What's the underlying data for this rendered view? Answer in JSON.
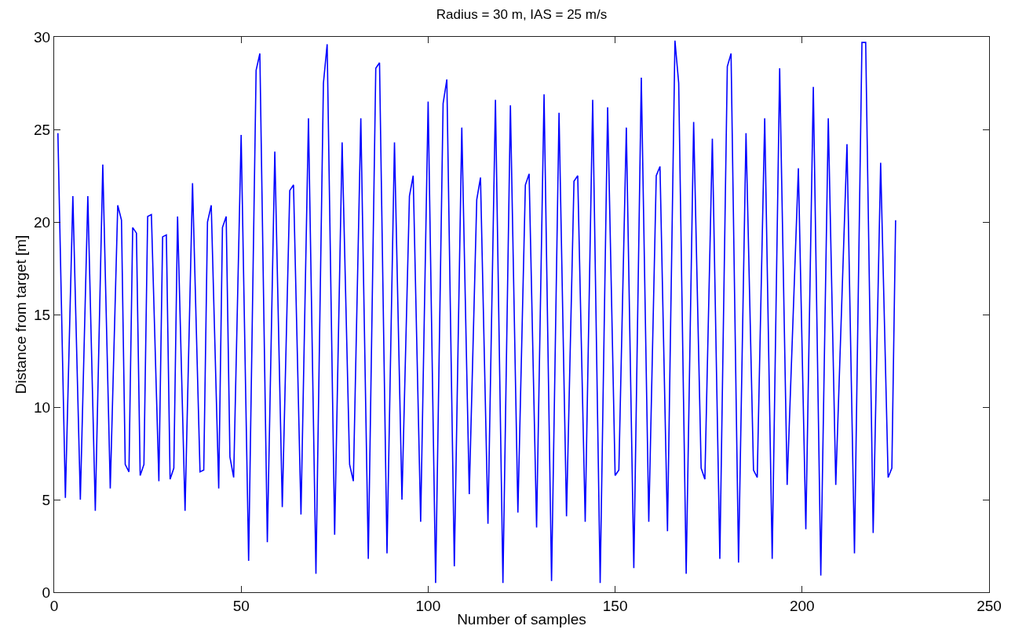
{
  "chart_data": {
    "type": "line",
    "title": "Radius = 30 m, IAS = 25 m/s",
    "xlabel": "Number of samples",
    "ylabel": "Distance from target [m]",
    "xlim": [
      0,
      250
    ],
    "xticks": [
      0,
      50,
      100,
      150,
      200,
      250
    ],
    "ylim": [
      0,
      30
    ],
    "yticks": [
      0,
      5,
      10,
      15,
      20,
      25,
      30
    ],
    "grid": false,
    "marker": "none",
    "line_style": "solid",
    "series": [
      {
        "color": "#0000ff",
        "x": [
          1,
          3,
          5,
          7,
          9,
          11,
          13,
          15,
          17,
          18,
          19,
          20,
          21,
          22,
          23,
          24,
          25,
          26,
          28,
          29,
          30,
          31,
          32,
          33,
          35,
          37,
          39,
          40,
          41,
          42,
          44,
          45,
          46,
          47,
          48,
          50,
          52,
          54,
          55,
          57,
          59,
          61,
          63,
          64,
          66,
          68,
          70,
          72,
          73,
          75,
          77,
          79,
          80,
          82,
          84,
          86,
          87,
          89,
          91,
          93,
          95,
          96,
          98,
          100,
          102,
          104,
          105,
          107,
          109,
          111,
          113,
          114,
          116,
          118,
          120,
          122,
          124,
          126,
          127,
          129,
          131,
          133,
          135,
          137,
          139,
          140,
          142,
          144,
          146,
          148,
          150,
          151,
          153,
          155,
          157,
          159,
          161,
          162,
          164,
          166,
          167,
          169,
          171,
          173,
          174,
          176,
          178,
          180,
          181,
          183,
          185,
          187,
          188,
          190,
          192,
          194,
          196,
          199,
          201,
          203,
          205,
          207,
          209,
          212,
          214,
          216,
          217,
          219,
          221,
          223,
          224,
          225
        ],
        "values": [
          24.8,
          5.1,
          21.4,
          5.0,
          21.4,
          4.4,
          23.1,
          5.6,
          20.9,
          20.1,
          6.9,
          6.5,
          19.7,
          19.4,
          6.3,
          6.9,
          20.3,
          20.4,
          6.0,
          19.2,
          19.3,
          6.1,
          6.7,
          20.3,
          4.4,
          22.1,
          6.5,
          6.6,
          20.0,
          20.9,
          5.6,
          19.7,
          20.3,
          7.3,
          6.2,
          24.7,
          1.7,
          28.2,
          29.1,
          2.7,
          23.8,
          4.6,
          21.7,
          22.0,
          4.2,
          25.6,
          1.0,
          27.5,
          29.6,
          3.1,
          24.3,
          6.9,
          6.0,
          25.6,
          1.8,
          28.3,
          28.6,
          2.1,
          24.3,
          5.0,
          21.4,
          22.5,
          3.8,
          26.5,
          0.5,
          26.4,
          27.7,
          1.4,
          25.1,
          5.3,
          21.2,
          22.4,
          3.7,
          26.6,
          0.5,
          26.3,
          4.3,
          22.0,
          22.6,
          3.5,
          26.9,
          0.6,
          25.9,
          4.1,
          22.2,
          22.5,
          3.8,
          26.6,
          0.5,
          26.2,
          6.3,
          6.6,
          25.1,
          1.3,
          27.8,
          3.8,
          22.5,
          23.0,
          3.3,
          29.8,
          27.5,
          1.0,
          25.4,
          6.7,
          6.1,
          24.5,
          1.8,
          28.4,
          29.1,
          1.6,
          24.8,
          6.6,
          6.2,
          25.6,
          1.8,
          28.3,
          5.8,
          22.9,
          3.4,
          27.3,
          0.9,
          25.6,
          5.8,
          24.2,
          2.1,
          29.7,
          29.7,
          3.2,
          23.2,
          6.2,
          6.7,
          20.1
        ]
      }
    ]
  }
}
